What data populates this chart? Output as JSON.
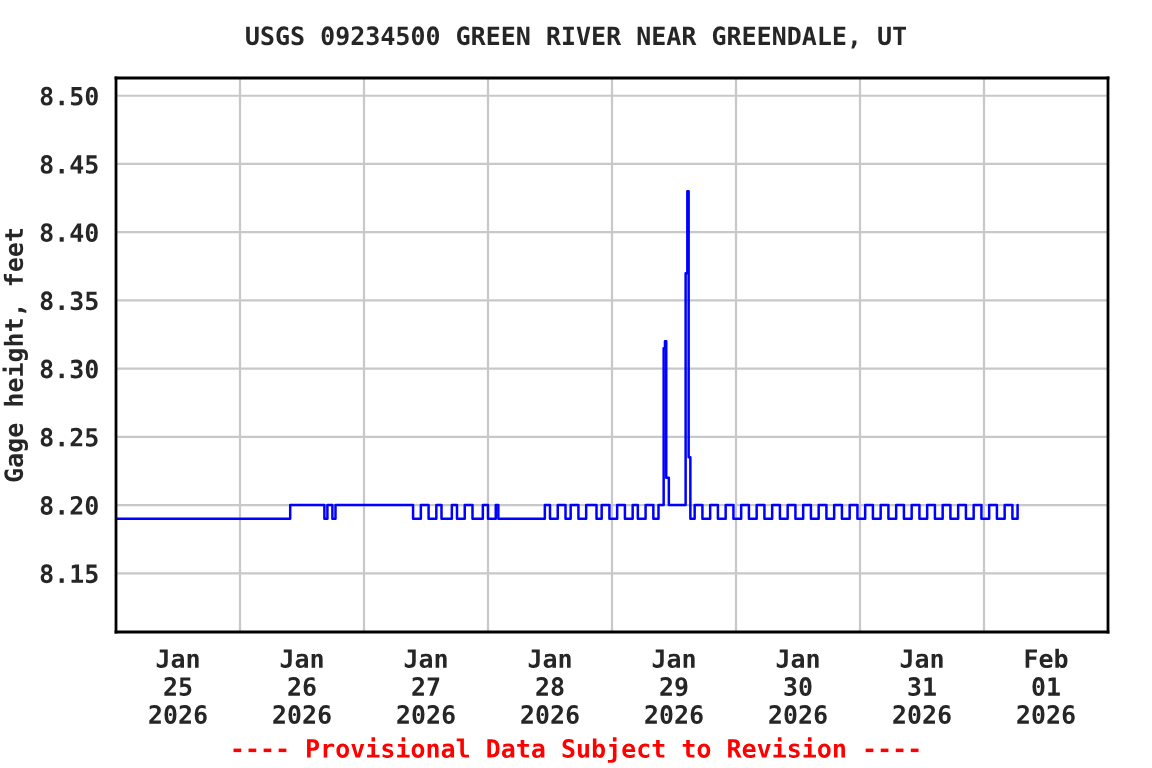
{
  "chart_data": {
    "type": "step",
    "title": "USGS 09234500 GREEN RIVER NEAR GREENDALE, UT",
    "ylabel": "Gage height, feet",
    "annotations": [
      "---- Provisional Data Subject to Revision ----"
    ],
    "grid": true,
    "line_style": "solid",
    "xlim": [
      "2026-01-25T00:00",
      "2026-02-02T00:00"
    ],
    "xticks": [
      {
        "value": "2026-01-25T00:00",
        "label": null
      },
      {
        "value": "2026-01-25T12:00",
        "label": "Jan\n25\n2026"
      },
      {
        "value": "2026-01-26T00:00",
        "label": null
      },
      {
        "value": "2026-01-26T12:00",
        "label": "Jan\n26\n2026"
      },
      {
        "value": "2026-01-27T00:00",
        "label": null
      },
      {
        "value": "2026-01-27T12:00",
        "label": "Jan\n27\n2026"
      },
      {
        "value": "2026-01-28T00:00",
        "label": null
      },
      {
        "value": "2026-01-28T12:00",
        "label": "Jan\n28\n2026"
      },
      {
        "value": "2026-01-29T00:00",
        "label": null
      },
      {
        "value": "2026-01-29T12:00",
        "label": "Jan\n29\n2026"
      },
      {
        "value": "2026-01-30T00:00",
        "label": null
      },
      {
        "value": "2026-01-30T12:00",
        "label": "Jan\n30\n2026"
      },
      {
        "value": "2026-01-31T00:00",
        "label": null
      },
      {
        "value": "2026-01-31T12:00",
        "label": "Jan\n31\n2026"
      },
      {
        "value": "2026-02-01T00:00",
        "label": null
      },
      {
        "value": "2026-02-01T12:00",
        "label": "Feb\n01\n2026"
      },
      {
        "value": "2026-02-02T00:00",
        "label": null
      }
    ],
    "ylim": [
      8.107,
      8.513
    ],
    "yticks": [
      8.15,
      {
        "value": 8.2,
        "label": "8.20"
      },
      8.25,
      {
        "value": 8.3,
        "label": "8.30"
      },
      8.35,
      {
        "value": 8.4,
        "label": "8.40"
      },
      8.45,
      {
        "value": 8.5,
        "label": "8.50"
      }
    ],
    "series": [
      {
        "color": "#0000ff",
        "x": [
          "2026-01-25T00:00",
          "2026-01-26T09:43",
          "2026-01-26T16:20",
          "2026-01-26T16:55",
          "2026-01-26T17:53",
          "2026-01-26T18:29",
          "2026-01-27T09:30",
          "2026-01-27T11:00",
          "2026-01-27T12:30",
          "2026-01-27T14:00",
          "2026-01-27T15:00",
          "2026-01-27T17:00",
          "2026-01-27T18:00",
          "2026-01-27T19:30",
          "2026-01-27T21:00",
          "2026-01-27T23:00",
          "2026-01-28T00:00",
          "2026-01-28T01:30",
          "2026-01-28T02:00",
          "2026-01-28T11:00",
          "2026-01-28T12:00",
          "2026-01-28T13:30",
          "2026-01-28T15:00",
          "2026-01-28T16:00",
          "2026-01-28T17:30",
          "2026-01-28T19:00",
          "2026-01-28T21:00",
          "2026-01-28T22:00",
          "2026-01-28T23:30",
          "2026-01-29T01:00",
          "2026-01-29T02:30",
          "2026-01-29T04:00",
          "2026-01-29T05:00",
          "2026-01-29T06:30",
          "2026-01-29T08:00",
          "2026-01-29T09:00",
          "2026-01-29T10:00",
          "2026-01-29T10:15",
          "2026-01-29T10:30",
          "2026-01-29T11:00",
          "2026-01-29T14:15",
          "2026-01-29T14:35",
          "2026-01-29T14:50",
          "2026-01-29T15:10",
          "2026-01-29T16:00",
          "2026-01-29T17:30",
          "2026-01-29T19:00",
          "2026-01-29T20:30",
          "2026-01-29T22:00",
          "2026-01-29T23:30",
          "2026-01-30T01:00",
          "2026-01-30T02:30",
          "2026-01-30T04:00",
          "2026-01-30T05:30",
          "2026-01-30T07:00",
          "2026-01-30T08:30",
          "2026-01-30T10:00",
          "2026-01-30T11:30",
          "2026-01-30T13:00",
          "2026-01-30T14:30",
          "2026-01-30T16:00",
          "2026-01-30T17:30",
          "2026-01-30T19:00",
          "2026-01-30T20:30",
          "2026-01-30T22:00",
          "2026-01-30T23:30",
          "2026-01-31T01:00",
          "2026-01-31T02:30",
          "2026-01-31T04:00",
          "2026-01-31T05:30",
          "2026-01-31T07:00",
          "2026-01-31T08:30",
          "2026-01-31T10:00",
          "2026-01-31T11:30",
          "2026-01-31T13:00",
          "2026-01-31T14:30",
          "2026-01-31T16:00",
          "2026-01-31T17:30",
          "2026-01-31T19:00",
          "2026-01-31T20:30",
          "2026-01-31T22:00",
          "2026-01-31T23:30",
          "2026-02-01T01:00",
          "2026-02-01T02:30",
          "2026-02-01T04:00",
          "2026-02-01T05:30",
          "2026-02-01T06:30"
        ],
        "values": [
          8.19,
          8.2,
          8.19,
          8.2,
          8.19,
          8.2,
          8.19,
          8.2,
          8.19,
          8.2,
          8.19,
          8.2,
          8.19,
          8.2,
          8.19,
          8.2,
          8.19,
          8.2,
          8.19,
          8.2,
          8.19,
          8.2,
          8.19,
          8.2,
          8.19,
          8.2,
          8.19,
          8.2,
          8.19,
          8.2,
          8.19,
          8.2,
          8.19,
          8.2,
          8.19,
          8.2,
          8.315,
          8.32,
          8.22,
          8.2,
          8.37,
          8.43,
          8.235,
          8.19,
          8.2,
          8.19,
          8.2,
          8.19,
          8.2,
          8.19,
          8.2,
          8.19,
          8.2,
          8.19,
          8.2,
          8.19,
          8.2,
          8.19,
          8.2,
          8.19,
          8.2,
          8.19,
          8.2,
          8.19,
          8.2,
          8.19,
          8.2,
          8.19,
          8.2,
          8.19,
          8.2,
          8.19,
          8.2,
          8.19,
          8.2,
          8.19,
          8.2,
          8.19,
          8.2,
          8.19,
          8.2,
          8.19,
          8.2,
          8.19,
          8.2,
          8.19,
          8.2
        ]
      }
    ]
  }
}
